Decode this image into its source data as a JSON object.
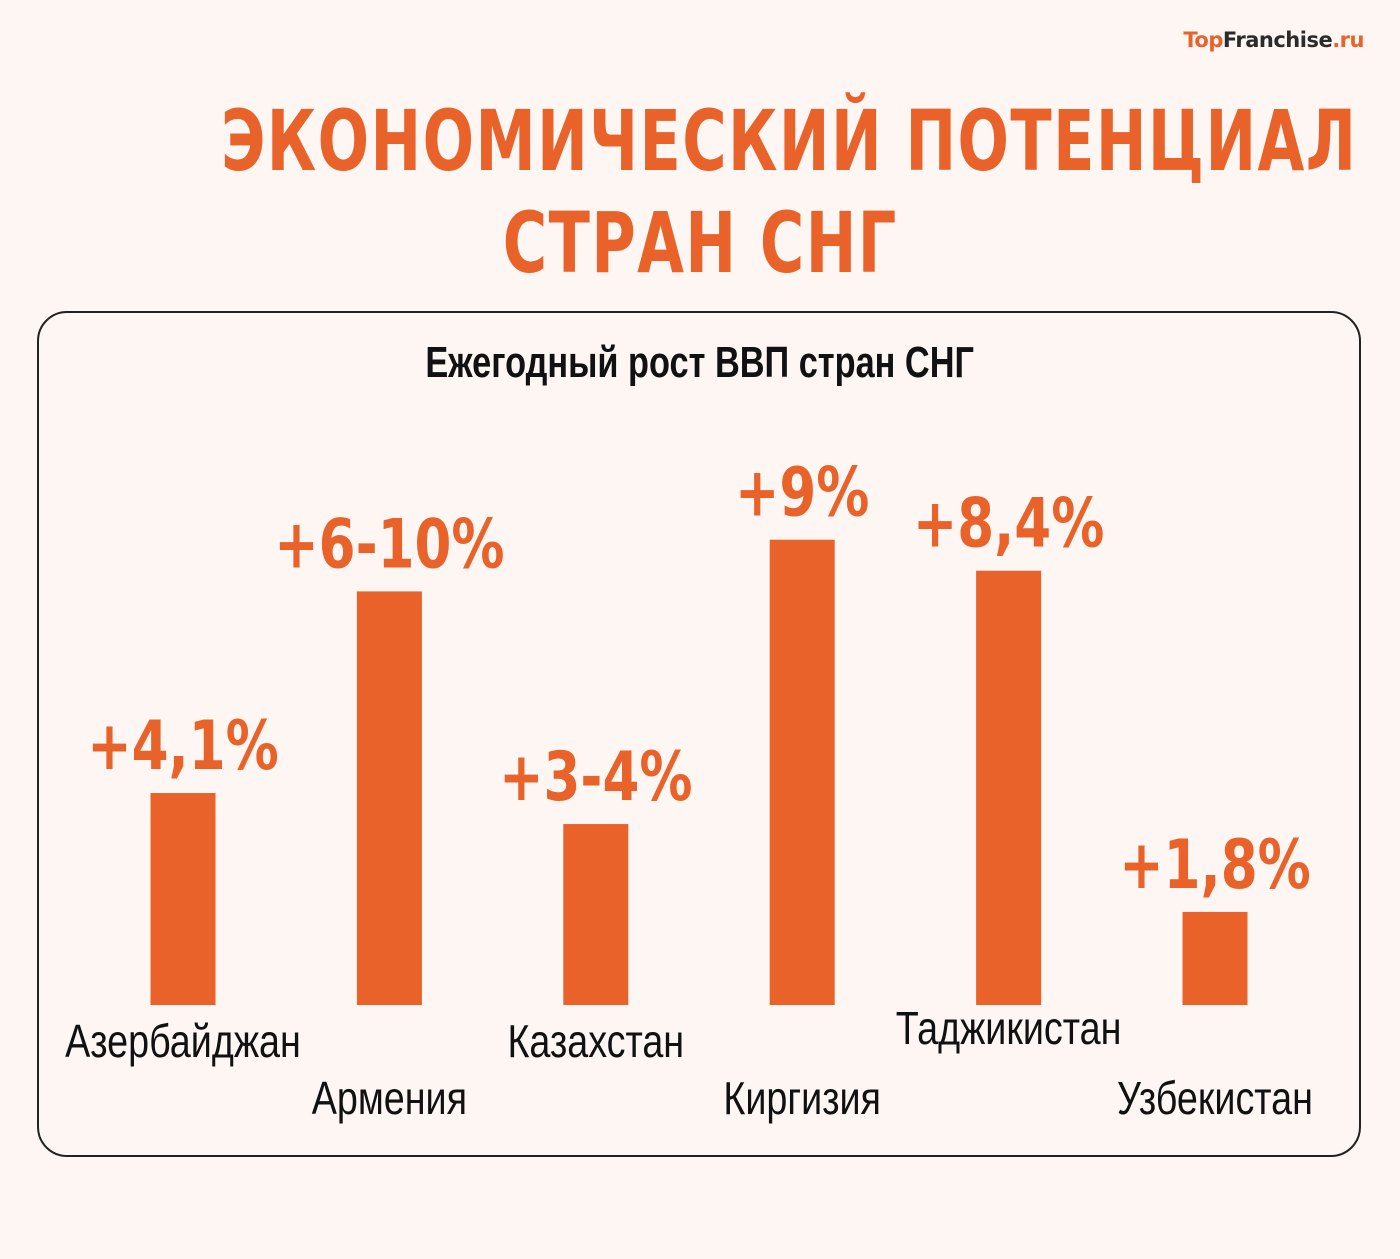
{
  "logo": {
    "part1": "Top",
    "part2": "Franchise",
    "part3": ".ru"
  },
  "title": {
    "line1": "ЭКОНОМИЧЕСКИЙ ПОТЕНЦИАЛ",
    "line2": "СТРАН СНГ"
  },
  "colors": {
    "accent": "#e8622a",
    "background": "#fdf6f2",
    "text": "#111111"
  },
  "chart_data": {
    "type": "bar",
    "title": "Ежегодный рост ВВП стран СНГ",
    "categories": [
      "Азербайджан",
      "Армения",
      "Казахстан",
      "Киргизия",
      "Таджикистан",
      "Узбекистан"
    ],
    "values": [
      4.1,
      8,
      3.5,
      9,
      8.4,
      1.8
    ],
    "data_labels": [
      "+4,1%",
      "+6-10%",
      "+3-4%",
      "+9%",
      "+8,4%",
      "+1,8%"
    ],
    "unit": "%",
    "ylim": [
      0,
      9
    ],
    "grid": false,
    "legend": "none"
  }
}
